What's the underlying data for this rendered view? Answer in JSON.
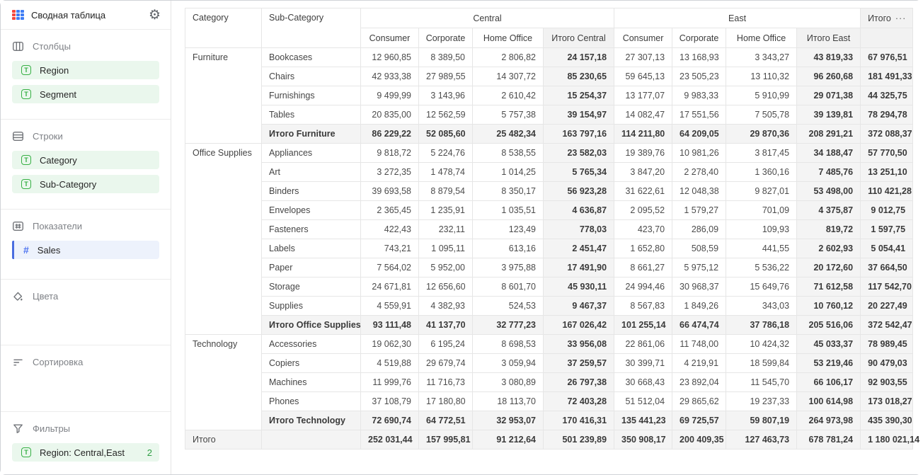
{
  "sidebar": {
    "title": "Сводная таблица",
    "sections": [
      {
        "id": "columns",
        "label": "Столбцы",
        "items": [
          {
            "label": "Region"
          },
          {
            "label": "Segment"
          }
        ]
      },
      {
        "id": "rows",
        "label": "Строки",
        "items": [
          {
            "label": "Category"
          },
          {
            "label": "Sub-Category"
          }
        ]
      },
      {
        "id": "measures",
        "label": "Показатели",
        "items": [
          {
            "label": "Sales"
          }
        ]
      },
      {
        "id": "colors",
        "label": "Цвета",
        "items": []
      },
      {
        "id": "sorting",
        "label": "Сортировка",
        "items": []
      },
      {
        "id": "filters",
        "label": "Фильтры",
        "items": [
          {
            "label": "Region: Central,East",
            "badge": "2"
          }
        ]
      }
    ]
  },
  "table": {
    "headers": {
      "category": "Category",
      "subcategory": "Sub-Category",
      "group_central": "Central",
      "group_east": "East",
      "grand_total": "Итого",
      "grand_total_menu": "···",
      "central_cols": [
        "Consumer",
        "Corporate",
        "Home Office",
        "Итого Central"
      ],
      "east_cols": [
        "Consumer",
        "Corporate",
        "Home Office",
        "Итого East"
      ]
    },
    "groups": [
      {
        "category": "Furniture",
        "rows": [
          {
            "name": "Bookcases",
            "values": [
              "12 960,85",
              "8 389,50",
              "2 806,82",
              "24 157,18",
              "27 307,13",
              "13 168,93",
              "3 343,27",
              "43 819,33",
              "67 976,51"
            ]
          },
          {
            "name": "Chairs",
            "values": [
              "42 933,38",
              "27 989,55",
              "14 307,72",
              "85 230,65",
              "59 645,13",
              "23 505,23",
              "13 110,32",
              "96 260,68",
              "181 491,33"
            ]
          },
          {
            "name": "Furnishings",
            "values": [
              "9 499,99",
              "3 143,96",
              "2 610,42",
              "15 254,37",
              "13 177,07",
              "9 983,33",
              "5 910,99",
              "29 071,38",
              "44 325,75"
            ]
          },
          {
            "name": "Tables",
            "values": [
              "20 835,00",
              "12 562,59",
              "5 757,38",
              "39 154,97",
              "14 082,47",
              "17 551,56",
              "7 505,78",
              "39 139,81",
              "78 294,78"
            ]
          }
        ],
        "subtotal": {
          "name": "Итого Furniture",
          "values": [
            "86 229,22",
            "52 085,60",
            "25 482,34",
            "163 797,16",
            "114 211,80",
            "64 209,05",
            "29 870,36",
            "208 291,21",
            "372 088,37"
          ]
        }
      },
      {
        "category": "Office Supplies",
        "rows": [
          {
            "name": "Appliances",
            "values": [
              "9 818,72",
              "5 224,76",
              "8 538,55",
              "23 582,03",
              "19 389,76",
              "10 981,26",
              "3 817,45",
              "34 188,47",
              "57 770,50"
            ]
          },
          {
            "name": "Art",
            "values": [
              "3 272,35",
              "1 478,74",
              "1 014,25",
              "5 765,34",
              "3 847,20",
              "2 278,40",
              "1 360,16",
              "7 485,76",
              "13 251,10"
            ]
          },
          {
            "name": "Binders",
            "values": [
              "39 693,58",
              "8 879,54",
              "8 350,17",
              "56 923,28",
              "31 622,61",
              "12 048,38",
              "9 827,01",
              "53 498,00",
              "110 421,28"
            ]
          },
          {
            "name": "Envelopes",
            "values": [
              "2 365,45",
              "1 235,91",
              "1 035,51",
              "4 636,87",
              "2 095,52",
              "1 579,27",
              "701,09",
              "4 375,87",
              "9 012,75"
            ]
          },
          {
            "name": "Fasteners",
            "values": [
              "422,43",
              "232,11",
              "123,49",
              "778,03",
              "423,70",
              "286,09",
              "109,93",
              "819,72",
              "1 597,75"
            ]
          },
          {
            "name": "Labels",
            "values": [
              "743,21",
              "1 095,11",
              "613,16",
              "2 451,47",
              "1 652,80",
              "508,59",
              "441,55",
              "2 602,93",
              "5 054,41"
            ]
          },
          {
            "name": "Paper",
            "values": [
              "7 564,02",
              "5 952,00",
              "3 975,88",
              "17 491,90",
              "8 661,27",
              "5 975,12",
              "5 536,22",
              "20 172,60",
              "37 664,50"
            ]
          },
          {
            "name": "Storage",
            "values": [
              "24 671,81",
              "12 656,60",
              "8 601,70",
              "45 930,11",
              "24 994,46",
              "30 968,37",
              "15 649,76",
              "71 612,58",
              "117 542,70"
            ]
          },
          {
            "name": "Supplies",
            "values": [
              "4 559,91",
              "4 382,93",
              "524,53",
              "9 467,37",
              "8 567,83",
              "1 849,26",
              "343,03",
              "10 760,12",
              "20 227,49"
            ]
          }
        ],
        "subtotal": {
          "name": "Итого Office Supplies",
          "values": [
            "93 111,48",
            "41 137,70",
            "32 777,23",
            "167 026,42",
            "101 255,14",
            "66 474,74",
            "37 786,18",
            "205 516,06",
            "372 542,47"
          ]
        }
      },
      {
        "category": "Technology",
        "rows": [
          {
            "name": "Accessories",
            "values": [
              "19 062,30",
              "6 195,24",
              "8 698,53",
              "33 956,08",
              "22 861,06",
              "11 748,00",
              "10 424,32",
              "45 033,37",
              "78 989,45"
            ]
          },
          {
            "name": "Copiers",
            "values": [
              "4 519,88",
              "29 679,74",
              "3 059,94",
              "37 259,57",
              "30 399,71",
              "4 219,91",
              "18 599,84",
              "53 219,46",
              "90 479,03"
            ]
          },
          {
            "name": "Machines",
            "values": [
              "11 999,76",
              "11 716,73",
              "3 080,89",
              "26 797,38",
              "30 668,43",
              "23 892,04",
              "11 545,70",
              "66 106,17",
              "92 903,55"
            ]
          },
          {
            "name": "Phones",
            "values": [
              "37 108,79",
              "17 180,80",
              "18 113,70",
              "72 403,28",
              "51 512,04",
              "29 865,62",
              "19 237,33",
              "100 614,98",
              "173 018,27"
            ]
          }
        ],
        "subtotal": {
          "name": "Итого Technology",
          "values": [
            "72 690,74",
            "64 772,51",
            "32 953,07",
            "170 416,31",
            "135 441,23",
            "69 725,57",
            "59 807,19",
            "264 973,98",
            "435 390,30"
          ]
        }
      }
    ],
    "grand_total_row": {
      "label": "Итого",
      "values": [
        "252 031,44",
        "157 995,81",
        "91 212,64",
        "501 239,89",
        "350 908,17",
        "200 409,35",
        "127 463,73",
        "678 781,24",
        "1 180 021,14"
      ]
    }
  },
  "colors": {
    "dimension_pill_bg": "#eaf7ed",
    "dimension_icon_green": "#36b044",
    "measure_pill_bg": "#edf2fc",
    "measure_accent_blue": "#4a6de0",
    "total_cell_bg": "#f4f4f4",
    "table_border": "#e6e6e6",
    "logo_red": "#f5463d",
    "logo_blue": "#3f7df5",
    "filter_badge_green": "#2f9e44"
  }
}
